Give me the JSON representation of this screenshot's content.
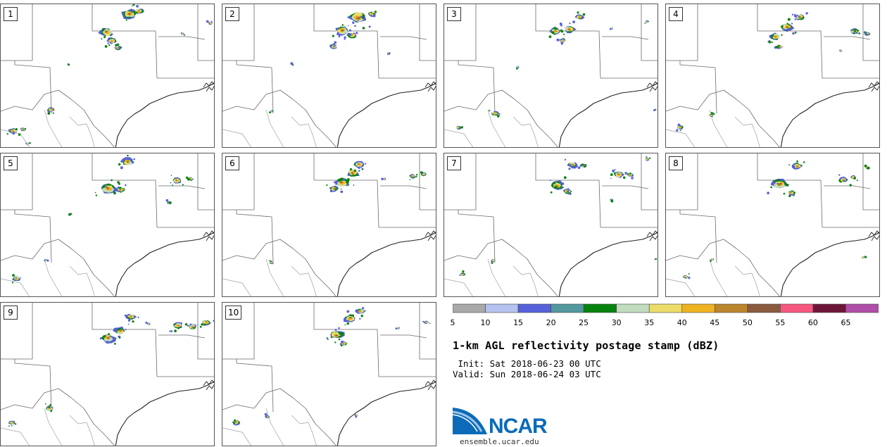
{
  "panels": [
    {
      "label": "1"
    },
    {
      "label": "2"
    },
    {
      "label": "3"
    },
    {
      "label": "4"
    },
    {
      "label": "5"
    },
    {
      "label": "6"
    },
    {
      "label": "7"
    },
    {
      "label": "8"
    },
    {
      "label": "9"
    },
    {
      "label": "10"
    }
  ],
  "colorbar": {
    "ticks": [
      "5",
      "10",
      "15",
      "20",
      "25",
      "30",
      "35",
      "40",
      "45",
      "50",
      "55",
      "60",
      "65"
    ],
    "colors": [
      "#a9a9a9",
      "#b5c3ee",
      "#5762da",
      "#53989e",
      "#07820e",
      "#c1dbbf",
      "#ecdd6a",
      "#efb221",
      "#bc862e",
      "#8a5b3e",
      "#f7577e",
      "#6e1638",
      "#b04ea8"
    ]
  },
  "title": "1-km AGL reflectivity postage stamp (dBZ)",
  "init": " Init: Sat 2018-06-23 00 UTC",
  "valid": "Valid: Sun 2018-06-24 03 UTC",
  "logo": {
    "text": "NCAR",
    "url": "ensemble.ucar.edu",
    "blue": "#0c6bb8"
  }
}
